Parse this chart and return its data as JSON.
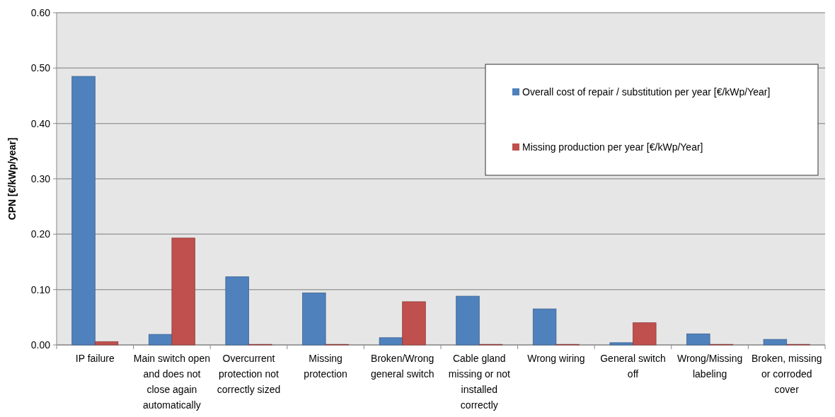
{
  "chart_data": {
    "type": "bar",
    "ylabel": "CPN  [€/kWp/year]",
    "categories": [
      "IP failure",
      "Main switch open and does not close again automatically",
      "Overcurrent protection not correctly sized",
      "Missing protection",
      "Broken/Wrong general switch",
      "Cable gland missing or not installed correctly",
      "Wrong wiring",
      "General switch off",
      "Wrong/Missing labeling",
      "Broken, missing or corroded cover"
    ],
    "series": [
      {
        "name": "Overall cost of repair / substitution per year  [€/kWp/Year]",
        "color": "#4f81bd",
        "values": [
          0.485,
          0.019,
          0.123,
          0.094,
          0.013,
          0.088,
          0.065,
          0.004,
          0.02,
          0.01
        ]
      },
      {
        "name": "Missing production per year  [€/kWp/Year]",
        "color": "#c0504d",
        "values": [
          0.006,
          0.193,
          0.001,
          0.001,
          0.078,
          0.001,
          0.001,
          0.04,
          0.001,
          0.001
        ]
      }
    ],
    "ylim": [
      0,
      0.6
    ],
    "yticks": [
      {
        "value": 0,
        "label": "0.00"
      },
      {
        "value": 0.1,
        "label": "0.10"
      },
      {
        "value": 0.2,
        "label": "0.20"
      },
      {
        "value": 0.3,
        "label": "0.30"
      },
      {
        "value": 0.4,
        "label": "0.40"
      },
      {
        "value": 0.5,
        "label": "0.50"
      },
      {
        "value": 0.6,
        "label": "0.60"
      }
    ],
    "grid": "y",
    "legend": "top right"
  }
}
